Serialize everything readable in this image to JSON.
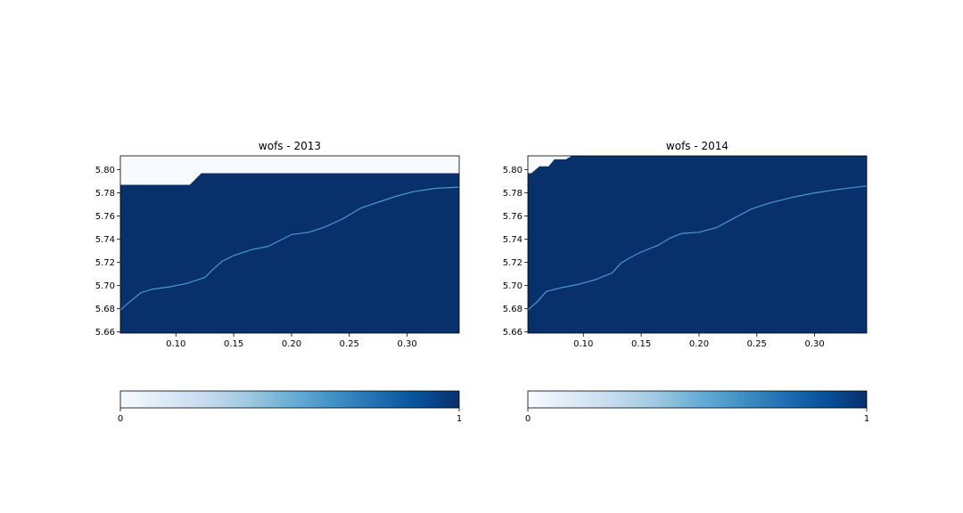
{
  "colormap": {
    "name": "Blues",
    "stops": [
      "#f7fbff",
      "#deebf7",
      "#c6dbef",
      "#9ecae1",
      "#6baed6",
      "#4292c6",
      "#2171b5",
      "#08519c",
      "#08306b"
    ],
    "water_color": "#08306b",
    "line_color": "#4a98d4",
    "nodata_color": "#f7fbff"
  },
  "chart_data": [
    {
      "type": "heatmap",
      "title": "wofs - 2013",
      "xlim": [
        0.052,
        0.345
      ],
      "ylim": [
        5.659,
        5.812
      ],
      "xticks": [
        "0.10",
        "0.15",
        "0.20",
        "0.25",
        "0.30"
      ],
      "xtick_values": [
        0.1,
        0.15,
        0.2,
        0.25,
        0.3
      ],
      "yticks": [
        "5.80",
        "5.78",
        "5.76",
        "5.74",
        "5.72",
        "5.70",
        "5.68",
        "5.66"
      ],
      "ytick_values": [
        5.8,
        5.78,
        5.76,
        5.74,
        5.72,
        5.7,
        5.68,
        5.66
      ],
      "value_range": [
        0,
        1
      ],
      "nodata_region": [
        [
          0.052,
          5.812
        ],
        [
          0.345,
          5.812
        ],
        [
          0.345,
          5.797
        ],
        [
          0.122,
          5.797
        ],
        [
          0.112,
          5.787
        ],
        [
          0.052,
          5.787
        ]
      ],
      "coastline": [
        [
          0.052,
          5.679
        ],
        [
          0.06,
          5.686
        ],
        [
          0.07,
          5.694
        ],
        [
          0.08,
          5.697
        ],
        [
          0.095,
          5.699
        ],
        [
          0.11,
          5.702
        ],
        [
          0.125,
          5.707
        ],
        [
          0.132,
          5.714
        ],
        [
          0.14,
          5.721
        ],
        [
          0.15,
          5.726
        ],
        [
          0.165,
          5.731
        ],
        [
          0.18,
          5.734
        ],
        [
          0.19,
          5.739
        ],
        [
          0.2,
          5.744
        ],
        [
          0.215,
          5.746
        ],
        [
          0.23,
          5.751
        ],
        [
          0.245,
          5.758
        ],
        [
          0.26,
          5.767
        ],
        [
          0.275,
          5.772
        ],
        [
          0.29,
          5.777
        ],
        [
          0.305,
          5.781
        ],
        [
          0.325,
          5.784
        ],
        [
          0.345,
          5.785
        ]
      ],
      "colorbar_ticks": [
        "0",
        "1"
      ]
    },
    {
      "type": "heatmap",
      "title": "wofs - 2014",
      "xlim": [
        0.052,
        0.345
      ],
      "ylim": [
        5.659,
        5.812
      ],
      "xticks": [
        "0.10",
        "0.15",
        "0.20",
        "0.25",
        "0.30"
      ],
      "xtick_values": [
        0.1,
        0.15,
        0.2,
        0.25,
        0.3
      ],
      "yticks": [
        "5.80",
        "5.78",
        "5.76",
        "5.74",
        "5.72",
        "5.70",
        "5.68",
        "5.66"
      ],
      "ytick_values": [
        5.8,
        5.78,
        5.76,
        5.74,
        5.72,
        5.7,
        5.68,
        5.66
      ],
      "value_range": [
        0,
        1
      ],
      "nodata_region": [
        [
          0.052,
          5.812
        ],
        [
          0.09,
          5.812
        ],
        [
          0.085,
          5.809
        ],
        [
          0.075,
          5.809
        ],
        [
          0.07,
          5.803
        ],
        [
          0.062,
          5.803
        ],
        [
          0.055,
          5.797
        ],
        [
          0.052,
          5.797
        ]
      ],
      "coastline": [
        [
          0.052,
          5.679
        ],
        [
          0.06,
          5.686
        ],
        [
          0.068,
          5.695
        ],
        [
          0.08,
          5.698
        ],
        [
          0.095,
          5.701
        ],
        [
          0.11,
          5.705
        ],
        [
          0.125,
          5.711
        ],
        [
          0.132,
          5.719
        ],
        [
          0.14,
          5.724
        ],
        [
          0.15,
          5.729
        ],
        [
          0.165,
          5.735
        ],
        [
          0.175,
          5.741
        ],
        [
          0.185,
          5.745
        ],
        [
          0.2,
          5.746
        ],
        [
          0.215,
          5.75
        ],
        [
          0.23,
          5.758
        ],
        [
          0.245,
          5.766
        ],
        [
          0.26,
          5.771
        ],
        [
          0.28,
          5.776
        ],
        [
          0.3,
          5.78
        ],
        [
          0.32,
          5.783
        ],
        [
          0.345,
          5.786
        ]
      ],
      "colorbar_ticks": [
        "0",
        "1"
      ]
    }
  ]
}
